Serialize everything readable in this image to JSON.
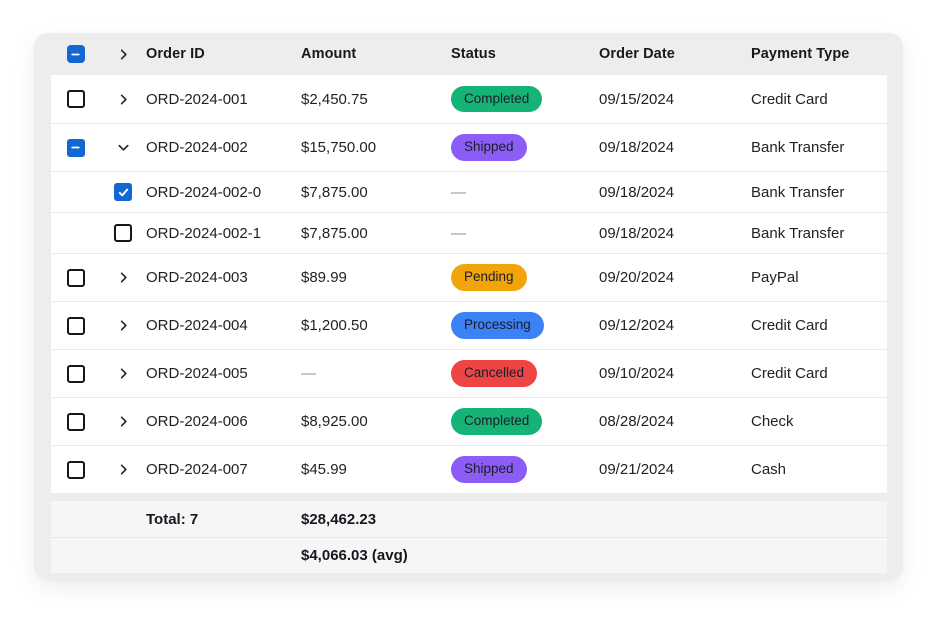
{
  "colors": {
    "accent_blue": "#1267d2",
    "card_background": "#ededee",
    "row_background": "#ffffff",
    "footer_background": "#f6f6f7",
    "status": {
      "Completed": "#16b377",
      "Shipped": "#8b5cf6",
      "Pending": "#f2a50a",
      "Processing": "#3b82f6",
      "Cancelled": "#ee4444"
    },
    "dash_text": "#8c8c98"
  },
  "table": {
    "columns": [
      {
        "key": "order_id",
        "label": "Order ID"
      },
      {
        "key": "amount",
        "label": "Amount"
      },
      {
        "key": "status",
        "label": "Status"
      },
      {
        "key": "order_date",
        "label": "Order Date"
      },
      {
        "key": "payment_type",
        "label": "Payment Type"
      }
    ],
    "header": {
      "select_all_state": "indeterminate"
    },
    "rows": [
      {
        "id": "ORD-2024-001",
        "amount": "$2,450.75",
        "status": "Completed",
        "date": "09/15/2024",
        "payment": "Credit Card",
        "check": "unchecked",
        "expanded": false
      },
      {
        "id": "ORD-2024-002",
        "amount": "$15,750.00",
        "status": "Shipped",
        "date": "09/18/2024",
        "payment": "Bank Transfer",
        "check": "indeterminate",
        "expanded": true,
        "children": [
          {
            "id": "ORD-2024-002-0",
            "amount": "$7,875.00",
            "status": "—",
            "date": "09/18/2024",
            "payment": "Bank Transfer",
            "check": "checked"
          },
          {
            "id": "ORD-2024-002-1",
            "amount": "$7,875.00",
            "status": "—",
            "date": "09/18/2024",
            "payment": "Bank Transfer",
            "check": "unchecked"
          }
        ]
      },
      {
        "id": "ORD-2024-003",
        "amount": "$89.99",
        "status": "Pending",
        "date": "09/20/2024",
        "payment": "PayPal",
        "check": "unchecked",
        "expanded": false
      },
      {
        "id": "ORD-2024-004",
        "amount": "$1,200.50",
        "status": "Processing",
        "date": "09/12/2024",
        "payment": "Credit Card",
        "check": "unchecked",
        "expanded": false
      },
      {
        "id": "ORD-2024-005",
        "amount": "—",
        "status": "Cancelled",
        "date": "09/10/2024",
        "payment": "Credit Card",
        "check": "unchecked",
        "expanded": false
      },
      {
        "id": "ORD-2024-006",
        "amount": "$8,925.00",
        "status": "Completed",
        "date": "08/28/2024",
        "payment": "Check",
        "check": "unchecked",
        "expanded": false
      },
      {
        "id": "ORD-2024-007",
        "amount": "$45.99",
        "status": "Shipped",
        "date": "09/21/2024",
        "payment": "Cash",
        "check": "unchecked",
        "expanded": false
      }
    ],
    "footer": {
      "total_label": "Total: 7",
      "total_amount": "$28,462.23",
      "average_amount": "$4,066.03 (avg)"
    }
  }
}
